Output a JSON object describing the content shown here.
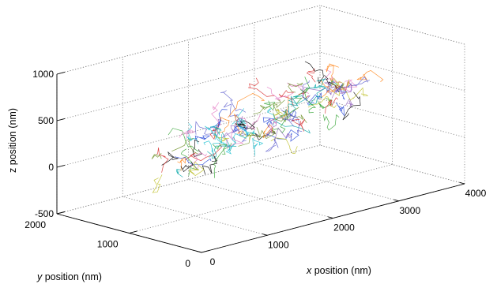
{
  "chart_data": {
    "type": "line",
    "plot_kind": "3d-trajectories",
    "xlabel_var": "x",
    "xlabel_rest": " position (nm)",
    "ylabel_var": "y",
    "ylabel_rest": " position (nm)",
    "zlabel": "z position (nm)",
    "xlim": [
      0,
      4000
    ],
    "ylim": [
      0,
      2000
    ],
    "zlim": [
      -500,
      1000
    ],
    "x_ticks": [
      "0",
      "1000",
      "2000",
      "3000",
      "4000"
    ],
    "x_tick_values": [
      0,
      1000,
      2000,
      3000,
      4000
    ],
    "y_ticks": [
      "0",
      "1000",
      "2000"
    ],
    "y_tick_values": [
      0,
      1000,
      2000
    ],
    "z_ticks": [
      "-500",
      "0",
      "500",
      "1000"
    ],
    "z_tick_values": [
      -500,
      0,
      500,
      1000
    ],
    "grid": true,
    "series_colors": [
      "#1f3fd6",
      "#d62728",
      "#2ca02c",
      "#17becf",
      "#bcbd22",
      "#9467bd",
      "#e377c2",
      "#ff7f0e",
      "#000000",
      "#00a6a6",
      "#6b8e23",
      "#5a5acd"
    ],
    "cloud": {
      "x_range": [
        500,
        3400
      ],
      "y_center": 1000,
      "y_spread": 320,
      "z_center": 300,
      "z_spread": 420,
      "n_traces": 120
    }
  }
}
